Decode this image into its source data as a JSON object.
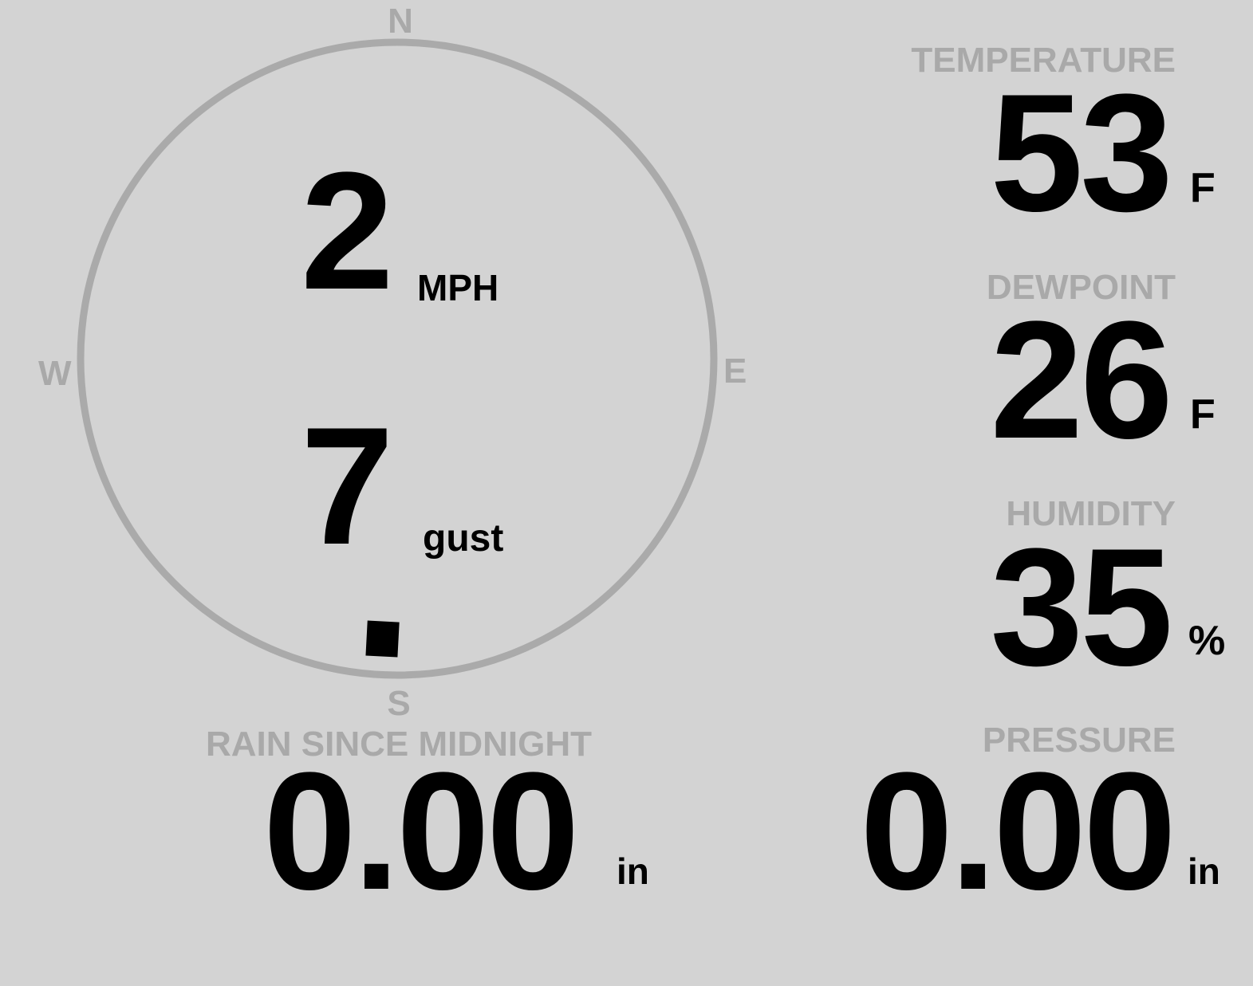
{
  "wind": {
    "compass": {
      "north": "N",
      "south": "S",
      "east": "E",
      "west": "W"
    },
    "speed": "2",
    "speed_unit": "MPH",
    "gust": "7",
    "gust_label": "gust",
    "direction_degrees": 183
  },
  "temperature": {
    "label": "TEMPERATURE",
    "value": "53",
    "unit": "F"
  },
  "dewpoint": {
    "label": "DEWPOINT",
    "value": "26",
    "unit": "F"
  },
  "humidity": {
    "label": "HUMIDITY",
    "value": "35",
    "unit": "%"
  },
  "rain": {
    "label": "RAIN SINCE MIDNIGHT",
    "value": "0.00",
    "unit": "in"
  },
  "pressure": {
    "label": "PRESSURE",
    "value": "0.00",
    "unit": "in"
  },
  "colors": {
    "background": "#d3d3d3",
    "label": "#a9a9a9",
    "value": "#000000",
    "ring": "#aaaaaa"
  }
}
